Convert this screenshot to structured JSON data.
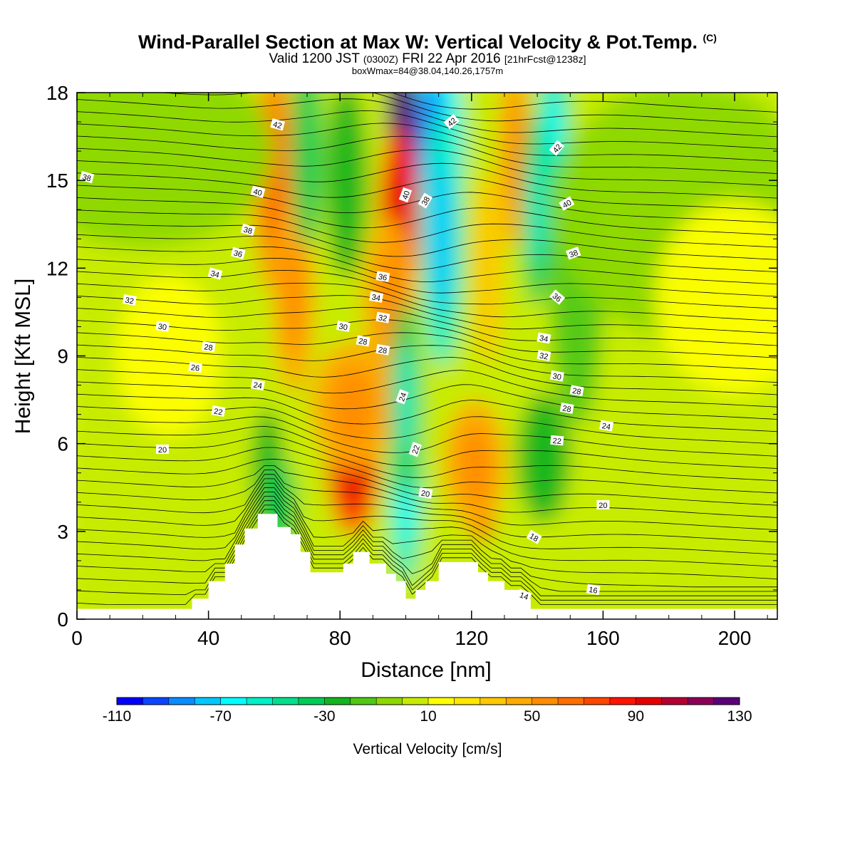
{
  "header": {
    "title": "Wind-Parallel Section at Max W: Vertical Velocity & Pot.Temp.",
    "title_mark": "(C)",
    "valid_prefix": "Valid 1200 JST",
    "valid_utc": "(0300Z)",
    "valid_date": "FRI 22 Apr 2016",
    "valid_fcst": "[21hrFcst@1238z]",
    "box_info": "boxWmax=84@38.04,140.26,1757m"
  },
  "chart_data": {
    "type": "heatmap",
    "title": "Wind-Parallel Section at Max W: Vertical Velocity & Pot.Temp.",
    "xlabel": "Distance [nm]",
    "ylabel": "Height [Kft MSL]",
    "xlim": [
      0,
      213
    ],
    "ylim": [
      0,
      18
    ],
    "x_ticks": [
      0,
      40,
      80,
      120,
      160,
      200
    ],
    "y_ticks": [
      0,
      3,
      6,
      9,
      12,
      15,
      18
    ],
    "colorbar": {
      "label": "Vertical Velocity [cm/s]",
      "min": -110,
      "max": 130,
      "step": 10,
      "tick_labels": [
        "-110",
        "-70",
        "-30",
        "10",
        "50",
        "90",
        "130"
      ],
      "tick_values": [
        -110,
        -70,
        -30,
        10,
        50,
        90,
        130
      ],
      "colors": [
        "#0000ff",
        "#0a46ff",
        "#0a8cff",
        "#00c8ff",
        "#00ffff",
        "#00f0c8",
        "#00e08c",
        "#00cc55",
        "#14b41e",
        "#50c814",
        "#8cd800",
        "#c8ec00",
        "#ffff00",
        "#ffe600",
        "#ffc800",
        "#ffaa00",
        "#ff8c00",
        "#ff6e00",
        "#ff4600",
        "#ff1400",
        "#e60000",
        "#b40032",
        "#8c005a",
        "#5a0078"
      ]
    },
    "terrain_kft": [
      [
        0,
        0.35
      ],
      [
        35,
        0.35
      ],
      [
        35,
        0.7
      ],
      [
        40,
        0.7
      ],
      [
        40,
        1.3
      ],
      [
        45,
        1.3
      ],
      [
        45,
        1.9
      ],
      [
        48,
        1.9
      ],
      [
        48,
        2.55
      ],
      [
        51,
        2.55
      ],
      [
        51,
        3.1
      ],
      [
        55,
        3.1
      ],
      [
        55,
        3.6
      ],
      [
        61,
        3.6
      ],
      [
        61,
        3.15
      ],
      [
        65,
        3.15
      ],
      [
        65,
        2.9
      ],
      [
        68,
        2.9
      ],
      [
        68,
        2.3
      ],
      [
        71,
        2.3
      ],
      [
        71,
        1.6
      ],
      [
        81,
        1.6
      ],
      [
        81,
        1.9
      ],
      [
        84,
        1.9
      ],
      [
        84,
        2.3
      ],
      [
        89,
        2.3
      ],
      [
        89,
        1.9
      ],
      [
        94,
        1.9
      ],
      [
        94,
        1.55
      ],
      [
        97,
        1.55
      ],
      [
        97,
        1.3
      ],
      [
        100,
        1.3
      ],
      [
        100,
        0.7
      ],
      [
        103,
        0.7
      ],
      [
        103,
        1.0
      ],
      [
        106,
        1.0
      ],
      [
        106,
        1.3
      ],
      [
        110,
        1.3
      ],
      [
        110,
        1.95
      ],
      [
        122,
        1.95
      ],
      [
        122,
        1.6
      ],
      [
        125,
        1.6
      ],
      [
        125,
        1.3
      ],
      [
        130,
        1.3
      ],
      [
        130,
        1.0
      ],
      [
        135,
        1.0
      ],
      [
        135,
        0.7
      ],
      [
        138,
        0.7
      ],
      [
        138,
        0.35
      ],
      [
        213,
        0.35
      ]
    ],
    "vv_cells": [
      {
        "x": 108,
        "y": 16.2,
        "sx": 6,
        "sy": 3.2,
        "v": -70
      },
      {
        "x": 111,
        "y": 13,
        "sx": 4,
        "sy": 4,
        "v": -60
      },
      {
        "x": 99,
        "y": 16.5,
        "sx": 3,
        "sy": 3,
        "v": 120
      },
      {
        "x": 98,
        "y": 13.5,
        "sx": 4,
        "sy": 3,
        "v": 80
      },
      {
        "x": 95,
        "y": 11,
        "sx": 5,
        "sy": 2.5,
        "v": 40
      },
      {
        "x": 84,
        "y": 5.3,
        "sx": 5,
        "sy": 2.2,
        "v": 75
      },
      {
        "x": 84,
        "y": 7.3,
        "sx": 8,
        "sy": 2,
        "v": 40
      },
      {
        "x": 123,
        "y": 4.3,
        "sx": 3,
        "sy": 1.5,
        "v": 70
      },
      {
        "x": 121,
        "y": 5.3,
        "sx": 6,
        "sy": 2,
        "v": 40
      },
      {
        "x": 100,
        "y": 4.5,
        "sx": 3,
        "sy": 3,
        "v": -55
      },
      {
        "x": 100,
        "y": 7.5,
        "sx": 3,
        "sy": 3,
        "v": -40
      },
      {
        "x": 60,
        "y": 15,
        "sx": 4,
        "sy": 3.5,
        "v": 50
      },
      {
        "x": 66,
        "y": 11,
        "sx": 4,
        "sy": 3,
        "v": 40
      },
      {
        "x": 70,
        "y": 16,
        "sx": 3,
        "sy": 3,
        "v": -35
      },
      {
        "x": 82,
        "y": 15,
        "sx": 4,
        "sy": 3,
        "v": -30
      },
      {
        "x": 58,
        "y": 5,
        "sx": 3,
        "sy": 2,
        "v": -30
      },
      {
        "x": 62,
        "y": 3.8,
        "sx": 3,
        "sy": 1.5,
        "v": -35
      },
      {
        "x": 133,
        "y": 16,
        "sx": 3,
        "sy": 3,
        "v": 40
      },
      {
        "x": 125,
        "y": 12,
        "sx": 3,
        "sy": 3,
        "v": 35
      },
      {
        "x": 140,
        "y": 14,
        "sx": 3,
        "sy": 3,
        "v": -40
      },
      {
        "x": 145,
        "y": 17,
        "sx": 3,
        "sy": 2,
        "v": -50
      },
      {
        "x": 142,
        "y": 5.5,
        "sx": 5,
        "sy": 2,
        "v": -25
      },
      {
        "x": 152,
        "y": 11,
        "sx": 5,
        "sy": 4,
        "v": -15
      },
      {
        "x": 20,
        "y": 16,
        "sx": 25,
        "sy": 3,
        "v": -5
      },
      {
        "x": 185,
        "y": 14,
        "sx": 25,
        "sy": 4,
        "v": -5
      },
      {
        "x": 28,
        "y": 9,
        "sx": 10,
        "sy": 2.5,
        "v": 12
      },
      {
        "x": 200,
        "y": 11,
        "sx": 15,
        "sy": 3,
        "v": 10
      }
    ],
    "theta_label_text": [
      "38",
      "42",
      "40",
      "38",
      "36",
      "34",
      "32",
      "30",
      "28",
      "26",
      "24",
      "22",
      "20",
      "36",
      "34",
      "32",
      "30",
      "28",
      "28",
      "24",
      "22",
      "20",
      "18",
      "16",
      "14",
      "42",
      "38",
      "40",
      "42",
      "40",
      "38",
      "36",
      "34",
      "32",
      "30",
      "28",
      "28",
      "24",
      "22",
      "20"
    ],
    "theta_label_pos": [
      [
        3,
        15.1
      ],
      [
        61,
        16.9
      ],
      [
        55,
        14.6
      ],
      [
        52,
        13.3
      ],
      [
        49,
        12.5
      ],
      [
        42,
        11.8
      ],
      [
        16,
        10.9
      ],
      [
        26,
        10.0
      ],
      [
        40,
        9.3
      ],
      [
        36,
        8.6
      ],
      [
        55,
        8.0
      ],
      [
        43,
        7.1
      ],
      [
        26,
        5.8
      ],
      [
        93,
        11.7
      ],
      [
        91,
        11.0
      ],
      [
        93,
        10.3
      ],
      [
        81,
        10.0
      ],
      [
        87,
        9.5
      ],
      [
        93,
        9.2
      ],
      [
        99,
        7.6
      ],
      [
        103,
        5.8
      ],
      [
        106,
        4.3
      ],
      [
        139,
        2.8
      ],
      [
        157,
        1.0
      ],
      [
        136,
        0.8
      ],
      [
        114,
        17.0
      ],
      [
        106,
        14.3
      ],
      [
        100,
        14.5
      ],
      [
        146,
        16.1
      ],
      [
        149,
        14.2
      ],
      [
        151,
        12.5
      ],
      [
        146,
        11.0
      ],
      [
        142,
        9.6
      ],
      [
        142,
        9.0
      ],
      [
        146,
        8.3
      ],
      [
        152,
        7.8
      ],
      [
        149,
        7.2
      ],
      [
        161,
        6.6
      ],
      [
        146,
        6.1
      ],
      [
        160,
        3.9
      ]
    ],
    "theta_label_rot": [
      -15,
      -15,
      -15,
      -15,
      -15,
      -15,
      -10,
      -8,
      -8,
      -8,
      -10,
      -10,
      0,
      -10,
      -10,
      -10,
      -10,
      -10,
      -10,
      70,
      70,
      -10,
      -30,
      -10,
      -20,
      40,
      60,
      70,
      50,
      30,
      20,
      -40,
      -10,
      -10,
      -10,
      -10,
      -10,
      -10,
      -5,
      0
    ]
  }
}
